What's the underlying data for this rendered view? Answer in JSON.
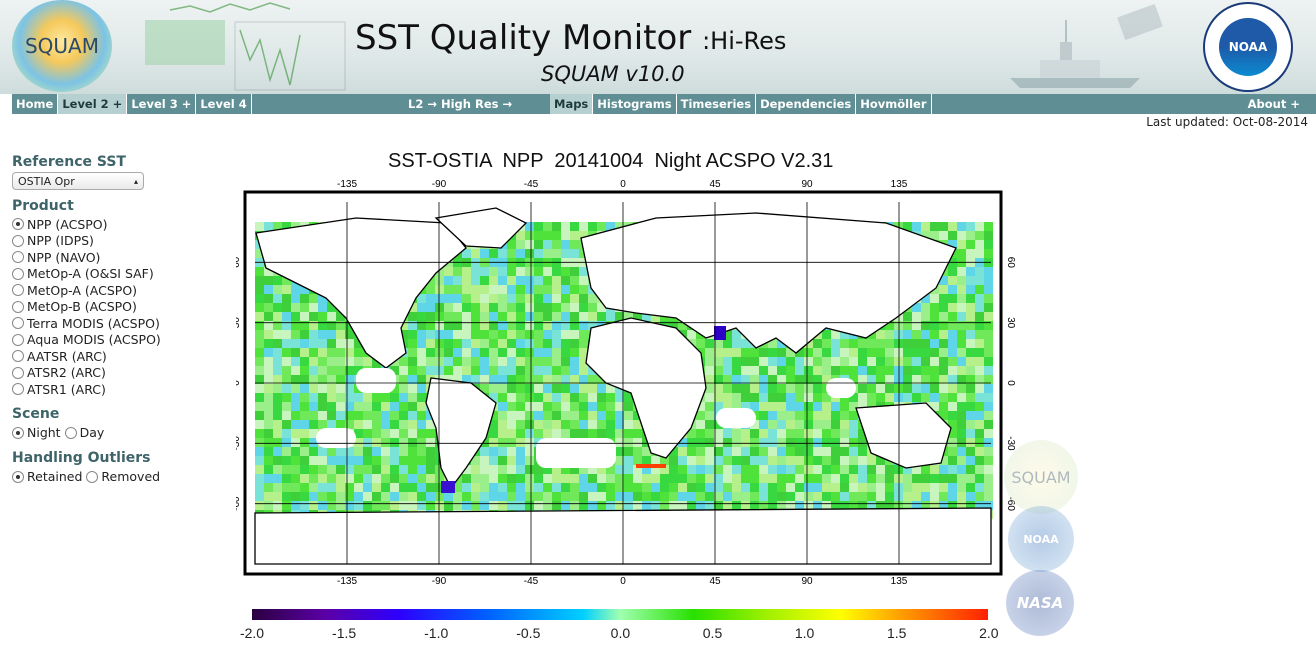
{
  "header": {
    "logo_text": "SQUAM",
    "title": "SST Quality Monitor",
    "title_suffix": ":Hi-Res",
    "subtitle": "SQUAM v10.0",
    "noaa_text": "NOAA"
  },
  "nav": {
    "home": "Home",
    "level2": "Level 2 +",
    "level3": "Level 3 +",
    "level4": "Level 4",
    "l2_breadcrumb": "L2 → High Res →",
    "maps": "Maps",
    "histograms": "Histograms",
    "timeseries": "Timeseries",
    "dependencies": "Dependencies",
    "hovmoller": "Hovmöller",
    "about": "About +"
  },
  "last_updated": "Last updated: Oct-08-2014",
  "sidebar": {
    "reference_sst_title": "Reference SST",
    "reference_sst_value": "OSTIA Opr",
    "product_title": "Product",
    "products": [
      {
        "label": "NPP (ACSPO)",
        "selected": true
      },
      {
        "label": "NPP (IDPS)",
        "selected": false
      },
      {
        "label": "NPP (NAVO)",
        "selected": false
      },
      {
        "label": "MetOp-A (O&SI SAF)",
        "selected": false
      },
      {
        "label": "MetOp-A (ACSPO)",
        "selected": false
      },
      {
        "label": "MetOp-B (ACSPO)",
        "selected": false
      },
      {
        "label": "Terra MODIS (ACSPO)",
        "selected": false
      },
      {
        "label": "Aqua MODIS (ACSPO)",
        "selected": false
      },
      {
        "label": "AATSR (ARC)",
        "selected": false
      },
      {
        "label": "ATSR2 (ARC)",
        "selected": false
      },
      {
        "label": "ATSR1 (ARC)",
        "selected": false
      }
    ],
    "scene_title": "Scene",
    "scene_night": "Night",
    "scene_day": "Day",
    "scene_selected": "Night",
    "outliers_title": "Handling Outliers",
    "outliers_retained": "Retained",
    "outliers_removed": "Removed",
    "outliers_selected": "Retained"
  },
  "map": {
    "title": "SST-OSTIA  NPP  20141004  Night ACSPO V2.31",
    "lon_ticks": [
      "-135",
      "-90",
      "-45",
      "0",
      "45",
      "90",
      "135"
    ],
    "lat_ticks": [
      "60",
      "30",
      "0",
      "-30",
      "-60"
    ],
    "colorbar_labels": [
      "-2.0",
      "-1.5",
      "-1.0",
      "-0.5",
      "0.0",
      "0.5",
      "1.0",
      "1.5",
      "2.0"
    ]
  },
  "watermarks": {
    "squam": "SQUAM",
    "noaa": "NOAA",
    "nasa": "NASA"
  }
}
